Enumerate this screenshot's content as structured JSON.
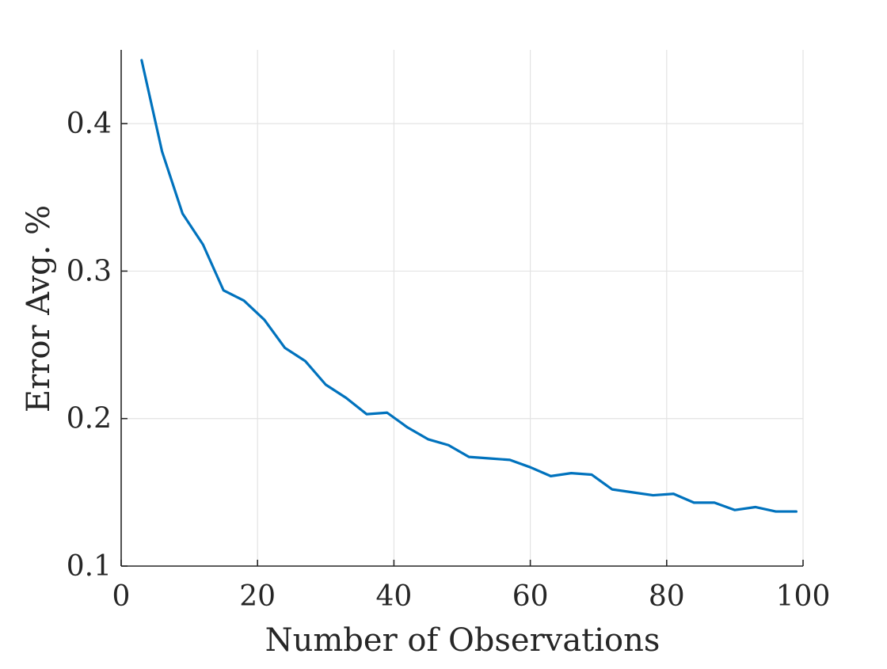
{
  "chart_data": {
    "type": "line",
    "title": "",
    "xlabel": "Number of Observations",
    "ylabel": "Error Avg. %",
    "xlim": [
      0,
      100
    ],
    "ylim": [
      0.1,
      0.45
    ],
    "xticks": [
      0,
      20,
      40,
      60,
      80,
      100
    ],
    "xtick_labels": [
      "0",
      "20",
      "40",
      "60",
      "80",
      "100"
    ],
    "yticks": [
      0.1,
      0.2,
      0.3,
      0.4
    ],
    "ytick_labels": [
      "0.1",
      "0.2",
      "0.3",
      "0.4"
    ],
    "grid": true,
    "series": [
      {
        "name": "Error Avg.",
        "color": "#0072BD",
        "x": [
          3,
          6,
          9,
          12,
          15,
          18,
          21,
          24,
          27,
          30,
          33,
          36,
          39,
          42,
          45,
          48,
          51,
          54,
          57,
          60,
          63,
          66,
          69,
          72,
          75,
          78,
          81,
          84,
          87,
          90,
          93,
          96,
          99
        ],
        "y": [
          0.443,
          0.381,
          0.339,
          0.318,
          0.287,
          0.28,
          0.267,
          0.248,
          0.239,
          0.223,
          0.214,
          0.203,
          0.204,
          0.194,
          0.186,
          0.182,
          0.174,
          0.173,
          0.172,
          0.167,
          0.161,
          0.163,
          0.162,
          0.152,
          0.15,
          0.148,
          0.149,
          0.143,
          0.143,
          0.138,
          0.14,
          0.137,
          0.137
        ]
      }
    ]
  }
}
